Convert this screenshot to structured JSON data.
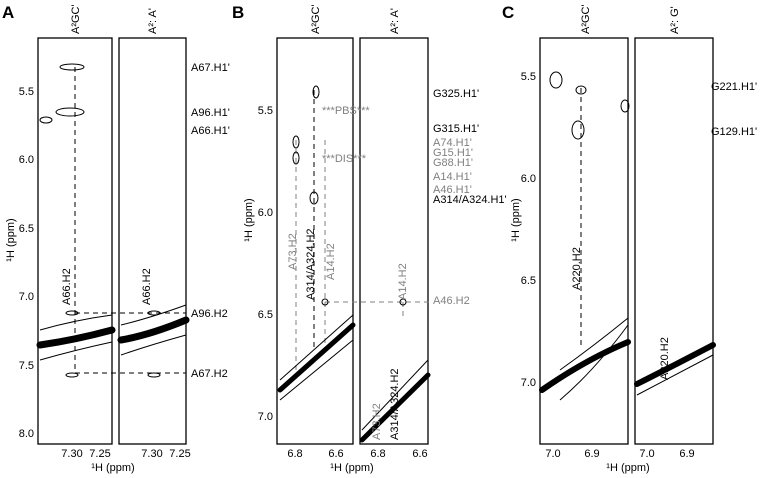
{
  "panels": [
    {
      "label": "A",
      "y_label": "¹H (ppm)",
      "x_label": "¹H (ppm)",
      "y_ticks": [
        "5.5",
        "6.0",
        "6.5",
        "7.0",
        "7.5",
        "8.0"
      ],
      "subpanels": [
        {
          "header": "A²GC'",
          "x_ticks": [
            "7.30",
            "7.25"
          ],
          "labels": [
            "A66.H2"
          ]
        },
        {
          "header": "A²: A'",
          "x_ticks": [
            "7.30",
            "7.25"
          ],
          "labels": [
            "A66.H2"
          ]
        }
      ],
      "annotations": [
        "A67.H1'",
        "A96.H1'",
        "A66.H1'",
        "A96.H2",
        "A67.H2"
      ]
    },
    {
      "label": "B",
      "y_label": "¹H (ppm)",
      "x_label": "¹H (ppm)",
      "y_ticks": [
        "5.5",
        "6.0",
        "6.5",
        "7.0"
      ],
      "subpanels": [
        {
          "header": "A²GC'",
          "x_ticks": [
            "6.8",
            "6.6"
          ],
          "labels": [
            "A73.H2",
            "A314/A324.H2",
            "A14.H2",
            "***PBS***",
            "***DIS***"
          ]
        },
        {
          "header": "A²: A'",
          "x_ticks": [
            "6.8",
            "6.6"
          ],
          "labels": [
            "A73.H2",
            "A314/A324.H2",
            "A14.H2"
          ]
        }
      ],
      "annotations": [
        "G325.H1'",
        "G315.H1'",
        "A74.H1'",
        "G15.H1'",
        "G88.H1'",
        "A14.H1'",
        "A46.H1'",
        "A314/A324.H1'",
        "A46.H2"
      ]
    },
    {
      "label": "C",
      "y_label": "¹H (ppm)",
      "x_label": "¹H (ppm)",
      "y_ticks": [
        "5.5",
        "6.0",
        "6.5",
        "7.0"
      ],
      "subpanels": [
        {
          "header": "A²GC'",
          "x_ticks": [
            "7.0",
            "6.9"
          ],
          "labels": [
            "A220.H2"
          ]
        },
        {
          "header": "A²: G'",
          "x_ticks": [
            "7.0",
            "6.9"
          ],
          "labels": [
            "A220.H2"
          ]
        }
      ],
      "annotations": [
        "G221.H1'",
        "G129.H1'"
      ]
    }
  ]
}
